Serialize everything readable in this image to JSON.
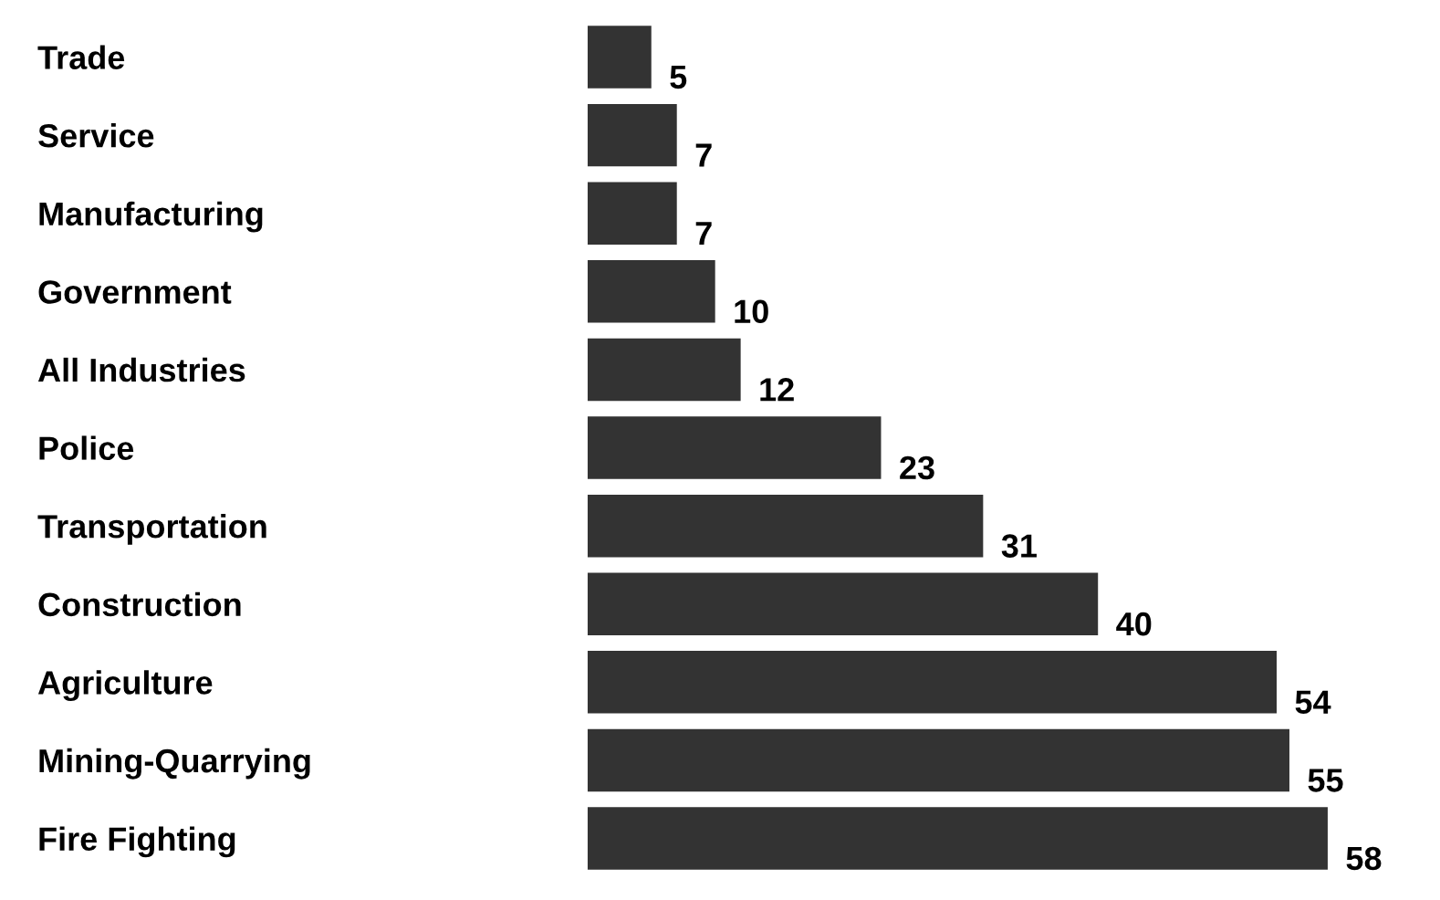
{
  "chart_data": {
    "type": "bar",
    "orientation": "horizontal",
    "categories": [
      "Trade",
      "Service",
      "Manufacturing",
      "Government",
      "All Industries",
      "Police",
      "Transportation",
      "Construction",
      "Agriculture",
      "Mining-Quarrying",
      "Fire Fighting"
    ],
    "values": [
      5,
      7,
      7,
      10,
      12,
      23,
      31,
      40,
      54,
      55,
      58
    ],
    "color": "#333333",
    "data_labels": true
  }
}
